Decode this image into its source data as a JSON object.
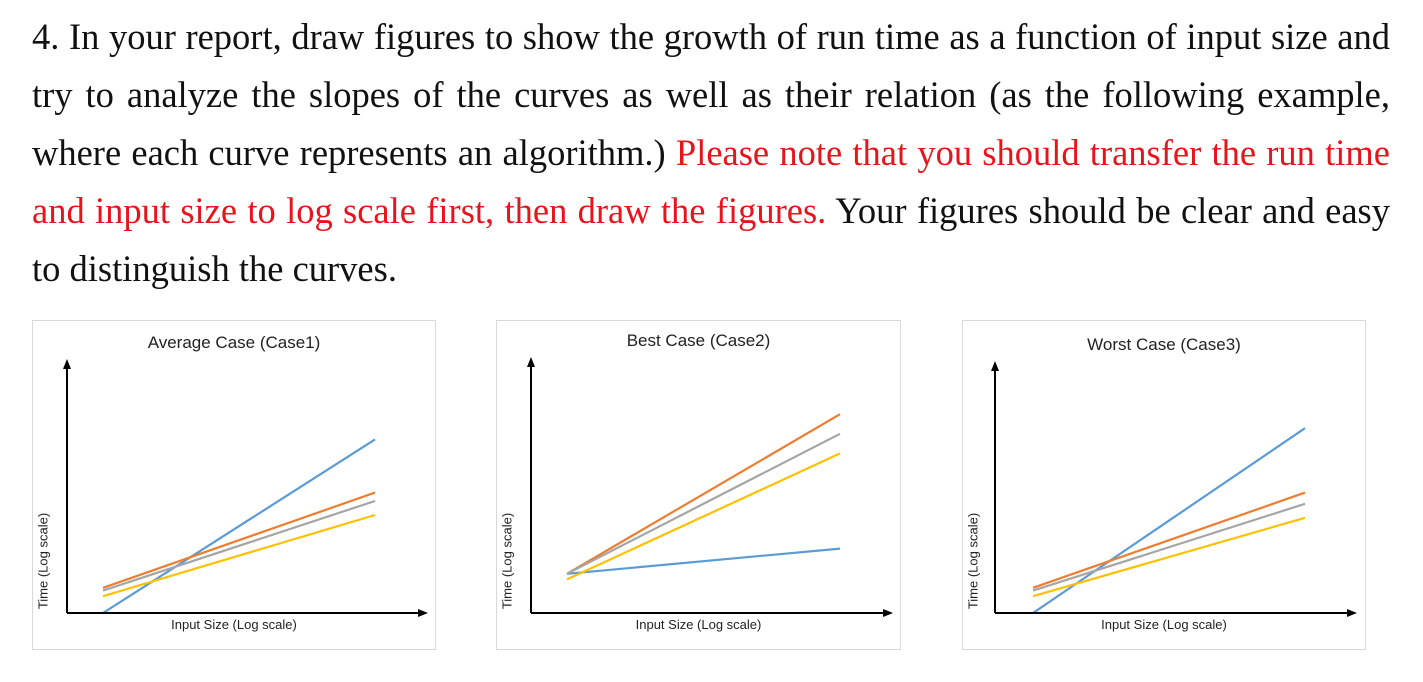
{
  "question": {
    "text_a": "4. In your report, draw figures to show the growth of run time as a function of input size and try to analyze the slopes of the curves as well as their relation (as the following example, where each curve represents an algorithm.) ",
    "text_red": "Please note that you should transfer the run time and input size to log scale first, then draw the figures.",
    "text_b": " Your figures should be clear and easy to distinguish the curves."
  },
  "colors": {
    "blue": "#5b9bd5",
    "orange": "#ed7d31",
    "gray": "#a5a5a5",
    "yellow": "#ffc000",
    "red_text": "#e8141c"
  },
  "chart_data": [
    {
      "type": "line",
      "title": "Average Case (Case1)",
      "xlabel": "Input Size (Log scale)",
      "ylabel": "Time (Log scale)",
      "x": [
        0,
        1
      ],
      "ylim": [
        0,
        10
      ],
      "grid": false,
      "series": [
        {
          "color": "#5b9bd5",
          "values": [
            0,
            6.2
          ]
        },
        {
          "color": "#ed7d31",
          "values": [
            0.9,
            4.3
          ]
        },
        {
          "color": "#a5a5a5",
          "values": [
            0.8,
            4.0
          ]
        },
        {
          "color": "#ffc000",
          "values": [
            0.6,
            3.5
          ]
        }
      ]
    },
    {
      "type": "line",
      "title": "Best Case (Case2)",
      "xlabel": "Input Size (Log scale)",
      "ylabel": "Time (Log scale)",
      "x": [
        0,
        1
      ],
      "ylim": [
        0,
        10
      ],
      "grid": false,
      "series": [
        {
          "color": "#5b9bd5",
          "values": [
            1.4,
            2.3
          ]
        },
        {
          "color": "#ed7d31",
          "values": [
            1.4,
            7.1
          ]
        },
        {
          "color": "#a5a5a5",
          "values": [
            1.4,
            6.4
          ]
        },
        {
          "color": "#ffc000",
          "values": [
            1.2,
            5.7
          ]
        }
      ]
    },
    {
      "type": "line",
      "title": "Worst Case (Case3)",
      "xlabel": "Input Size (Log scale)",
      "ylabel": "Time (Log scale)",
      "x": [
        0,
        1
      ],
      "ylim": [
        0,
        10
      ],
      "grid": false,
      "series": [
        {
          "color": "#5b9bd5",
          "values": [
            0,
            6.6
          ]
        },
        {
          "color": "#ed7d31",
          "values": [
            0.9,
            4.3
          ]
        },
        {
          "color": "#a5a5a5",
          "values": [
            0.8,
            3.9
          ]
        },
        {
          "color": "#ffc000",
          "values": [
            0.6,
            3.4
          ]
        }
      ]
    }
  ]
}
